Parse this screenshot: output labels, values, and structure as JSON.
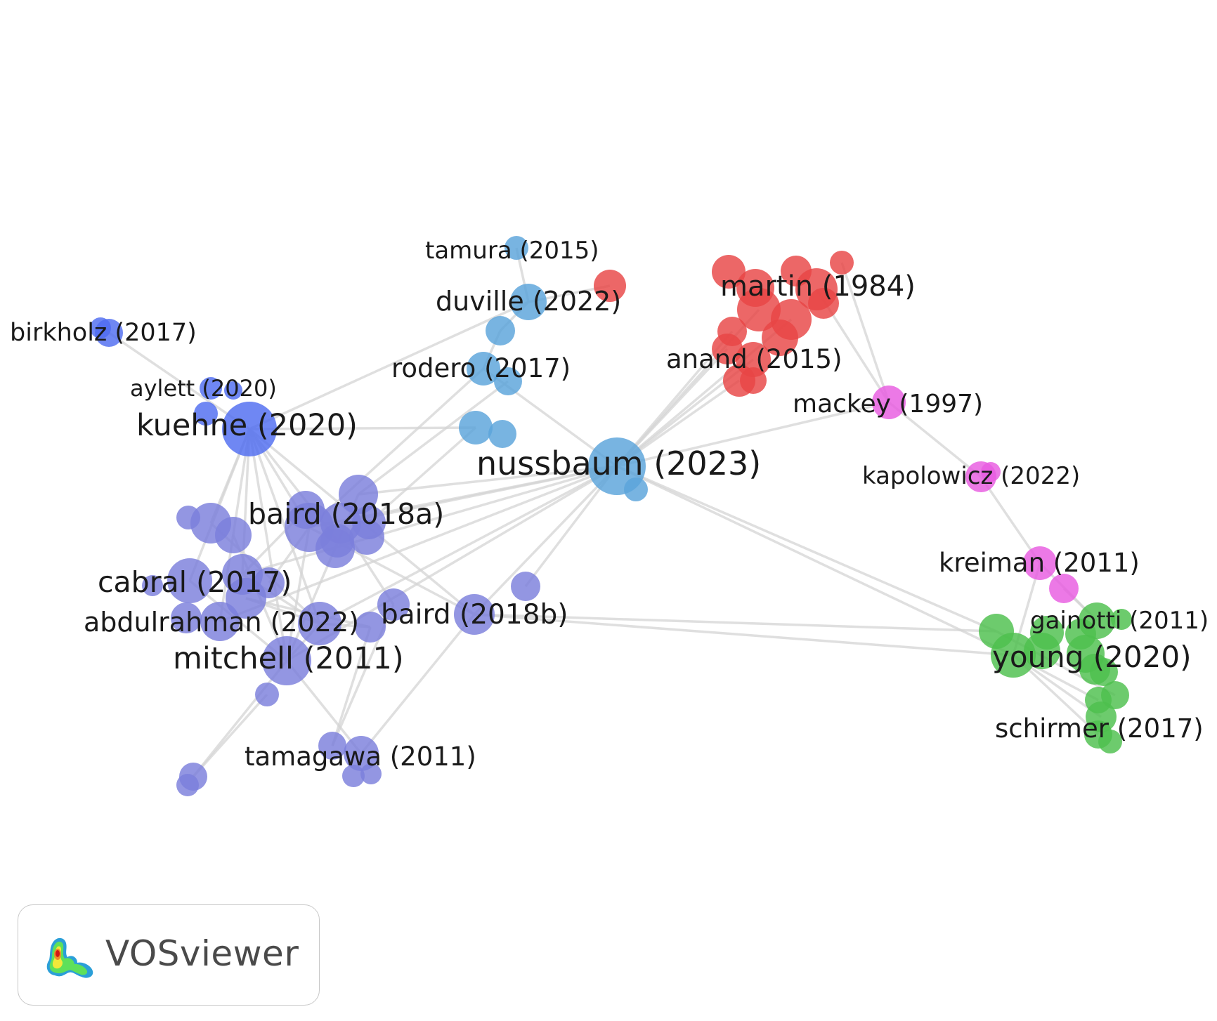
{
  "app": {
    "name": "VOSviewer"
  },
  "colors": {
    "light_blue": "#5aa3da",
    "blue": "#4f6df0",
    "purple": "#7b7fdc",
    "red": "#e84545",
    "magenta": "#e85ce0",
    "green": "#4dbf4d",
    "link": "#d4d4d4"
  },
  "labels": {
    "tamura_2015": "tamura (2015)",
    "duville_2022": "duville (2022)",
    "birkholz_2017": "birkholz (2017)",
    "rodero_2017": "rodero (2017)",
    "aylett_2020": "aylett (2020)",
    "kuehne_2020": "kuehne (2020)",
    "martin_1984": "martin (1984)",
    "anand_2015": "anand (2015)",
    "mackey_1997": "mackey (1997)",
    "nussbaum_2023": "nussbaum (2023)",
    "kapolowicz_2022": "kapolowicz (2022)",
    "baird_2018a": "baird (2018a)",
    "cabral_2017": "cabral (2017)",
    "kreiman_2011": "kreiman (2011)",
    "abdulrahman_2022": "abdulrahman (2022)",
    "baird_2018b": "baird (2018b)",
    "gainotti_2011": "gainotti (2011)",
    "mitchell_2011": "mitchell (2011)",
    "young_2020": "young (2020)",
    "schirmer_2017": "schirmer (2017)",
    "tamagawa_2011": "tamagawa (2011)"
  }
}
